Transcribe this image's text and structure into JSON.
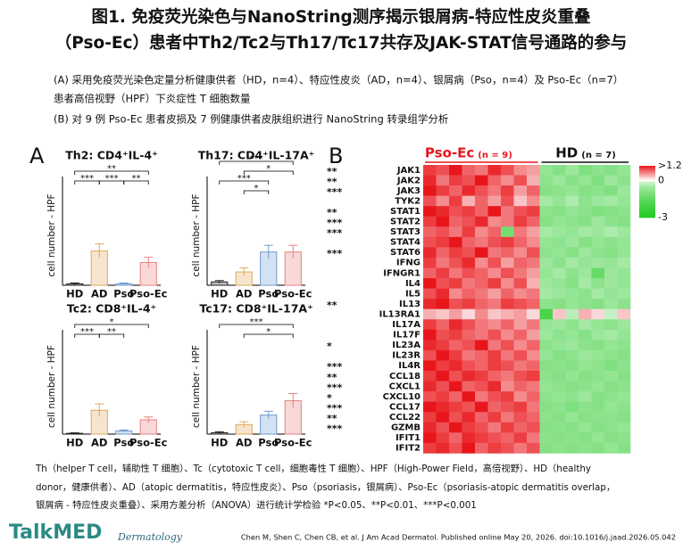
{
  "header": {
    "title_line1": "图1. 免疫荧光染色与NanoString测序揭示银屑病-特应性皮炎重叠",
    "title_line2": "（Pso-Ec）患者中Th2/Tc2与Th17/Tc17共存及JAK-STAT信号通路的参与",
    "desc_a1": "(A) 采用免疫荧光染色定量分析健康供者（HD，n=4）、特应性皮炎（AD，n=4）、银屑病（Pso，n=4）及 Pso-Ec（n=7）",
    "desc_a2": "患者高倍视野（HPF）下炎症性 T 细胞数量",
    "desc_b": "(B) 对 9 例 Pso-Ec 患者皮损及 7 例健康供者皮肤组织进行 NanoString 转录组学分析"
  },
  "panel_labels": {
    "a": "A",
    "b": "B"
  },
  "chart_data": [
    {
      "type": "bar",
      "title": "Th2: CD4⁺IL-4⁺",
      "ylabel": "cell number - HPF",
      "categories": [
        "HD",
        "AD",
        "Pso",
        "Pso-Ec"
      ],
      "values": [
        0.5,
        12,
        0.5,
        8
      ],
      "errors": [
        0.3,
        2.5,
        0.3,
        1.8
      ],
      "colors": [
        "#222222",
        "#e0a85a",
        "#6f9bd1",
        "#e8807e"
      ],
      "ylim": [
        0,
        35
      ],
      "significance": [
        "**",
        "***",
        "***",
        "**"
      ]
    },
    {
      "type": "bar",
      "title": "Th17: CD4⁺IL-17A⁺",
      "ylabel": "cell number - HPF",
      "categories": [
        "HD",
        "AD",
        "Pso",
        "Pso-Ec"
      ],
      "values": [
        0.5,
        2,
        5,
        5
      ],
      "errors": [
        0.2,
        0.6,
        1,
        1
      ],
      "colors": [
        "#222222",
        "#e0a85a",
        "#6f9bd1",
        "#e8807e"
      ],
      "ylim": [
        0,
        15
      ],
      "significance": [
        "***",
        "*",
        "***",
        "*"
      ]
    },
    {
      "type": "bar",
      "title": "Tc2: CD8⁺IL-4⁺",
      "ylabel": "cell number - HPF",
      "categories": [
        "HD",
        "AD",
        "Pso",
        "Pso-Ec"
      ],
      "values": [
        0.5,
        15,
        2,
        9
      ],
      "errors": [
        0.3,
        4,
        0.6,
        1.8
      ],
      "colors": [
        "#222222",
        "#e0a85a",
        "#6f9bd1",
        "#e8807e"
      ],
      "ylim": [
        0,
        60
      ],
      "significance": [
        "*",
        "***",
        "**"
      ]
    },
    {
      "type": "bar",
      "title": "Tc17: CD8⁺IL-17A⁺",
      "ylabel": "cell number - HPF",
      "categories": [
        "HD",
        "AD",
        "Pso",
        "Pso-Ec"
      ],
      "values": [
        0.3,
        2,
        4,
        7
      ],
      "errors": [
        0.2,
        0.6,
        0.8,
        1.5
      ],
      "colors": [
        "#222222",
        "#e0a85a",
        "#6f9bd1",
        "#e8807e"
      ],
      "ylim": [
        0,
        20
      ],
      "significance": [
        "***",
        "*"
      ]
    },
    {
      "type": "heatmap",
      "groups": [
        {
          "name": "Pso-Ec",
          "n": {
            "value": 9,
            "label": "(n = 9)"
          },
          "color": "#e8161b"
        },
        {
          "name": "HD",
          "n": {
            "value": 7,
            "label": "(n = 7)"
          },
          "color": "#111111"
        }
      ],
      "rows": [
        "JAK1",
        "JAK2",
        "JAK3",
        "TYK2",
        "STAT1",
        "STAT2",
        "STAT3",
        "STAT4",
        "STAT6",
        "IFNG",
        "IFNGR1",
        "IL4",
        "IL5",
        "IL13",
        "IL13RA1",
        "IL17A",
        "IL17F",
        "IL23A",
        "IL23R",
        "IL4R",
        "CCL18",
        "CXCL1",
        "CXCL10",
        "CCL17",
        "CCL22",
        "GZMB",
        "IFIT1",
        "IFIT2"
      ],
      "significance": [
        "**",
        "**",
        "***",
        null,
        "**",
        "***",
        "***",
        null,
        "***",
        null,
        null,
        null,
        null,
        "**",
        null,
        null,
        null,
        "*",
        null,
        "***",
        "**",
        "***",
        "*",
        "***",
        "**",
        "***",
        null,
        null
      ],
      "values": [
        [
          1.0,
          0.9,
          1.2,
          0.8,
          0.7,
          1.1,
          0.9,
          0.6,
          0.5,
          -0.7,
          -0.9,
          -0.6,
          -1.0,
          -0.8,
          -0.9,
          -0.7
        ],
        [
          1.1,
          0.7,
          1.0,
          0.9,
          1.2,
          0.8,
          0.6,
          0.9,
          0.4,
          -0.8,
          -0.6,
          -0.9,
          -0.7,
          -1.0,
          -0.6,
          -0.8
        ],
        [
          1.2,
          1.0,
          0.8,
          1.1,
          0.9,
          0.7,
          1.0,
          0.5,
          0.8,
          -0.9,
          -0.8,
          -0.7,
          -0.9,
          -0.8,
          -1.0,
          -0.6
        ],
        [
          0.9,
          0.6,
          1.0,
          0.4,
          0.8,
          0.5,
          0.9,
          0.3,
          0.6,
          -0.5,
          -0.7,
          -0.4,
          -0.8,
          -0.6,
          -0.5,
          -0.7
        ],
        [
          1.2,
          1.1,
          0.9,
          1.0,
          0.8,
          1.2,
          0.7,
          0.9,
          1.0,
          -0.8,
          -0.9,
          -0.7,
          -0.8,
          -1.0,
          -0.9,
          -0.8
        ],
        [
          1.0,
          1.2,
          0.8,
          0.9,
          1.1,
          0.6,
          0.7,
          1.0,
          0.8,
          -0.9,
          -0.7,
          -0.8,
          -0.9,
          -0.6,
          -0.8,
          -0.9
        ],
        [
          0.8,
          0.9,
          0.7,
          1.0,
          0.6,
          0.8,
          -1.2,
          0.7,
          0.5,
          -0.5,
          -0.6,
          -0.7,
          -0.5,
          -0.6,
          -0.4,
          -0.6
        ],
        [
          0.9,
          1.0,
          1.2,
          0.8,
          0.7,
          0.9,
          1.0,
          0.8,
          0.6,
          -0.7,
          -0.8,
          -0.6,
          -0.9,
          -0.7,
          -0.8,
          -0.7
        ],
        [
          1.1,
          0.8,
          1.0,
          0.9,
          1.2,
          0.7,
          0.8,
          0.6,
          0.9,
          -0.8,
          -0.7,
          -0.9,
          -0.6,
          -0.8,
          -0.9,
          -0.7
        ],
        [
          1.0,
          0.7,
          0.9,
          1.1,
          0.6,
          0.9,
          0.5,
          0.8,
          0.7,
          -0.6,
          -0.8,
          -0.5,
          -0.7,
          -0.6,
          -0.7,
          -0.5
        ],
        [
          0.8,
          1.0,
          0.7,
          0.9,
          0.8,
          0.6,
          0.9,
          0.7,
          0.5,
          -0.7,
          -0.5,
          -0.8,
          -0.6,
          -1.4,
          -0.6,
          -0.7
        ],
        [
          1.2,
          0.9,
          1.0,
          0.7,
          0.8,
          1.0,
          0.6,
          0.9,
          0.4,
          -0.6,
          -0.7,
          -0.9,
          -0.5,
          -0.8,
          -0.6,
          -0.7
        ],
        [
          0.9,
          1.1,
          0.6,
          0.8,
          0.7,
          0.5,
          0.8,
          0.6,
          0.7,
          -0.5,
          -0.6,
          -0.7,
          -0.8,
          -0.5,
          -0.7,
          -0.6
        ],
        [
          1.1,
          1.2,
          0.9,
          1.0,
          0.8,
          0.7,
          1.0,
          0.9,
          0.8,
          -0.8,
          -0.9,
          -0.7,
          -0.8,
          -0.9,
          -0.6,
          -0.8
        ],
        [
          0.4,
          0.3,
          0.5,
          0.2,
          0.6,
          0.3,
          0.4,
          0.5,
          0.2,
          -2.0,
          0.3,
          -0.3,
          0.4,
          0.2,
          -0.2,
          0.3
        ],
        [
          1.0,
          0.8,
          1.1,
          0.9,
          0.7,
          0.6,
          0.8,
          0.5,
          0.7,
          -0.7,
          -0.6,
          -0.8,
          -0.5,
          -0.7,
          -0.8,
          -0.6
        ],
        [
          1.2,
          0.9,
          1.0,
          0.8,
          0.7,
          0.9,
          0.6,
          0.8,
          0.5,
          -0.6,
          -0.8,
          -0.7,
          -0.9,
          -0.6,
          -0.5,
          -0.7
        ],
        [
          1.1,
          1.0,
          0.8,
          0.9,
          1.2,
          0.7,
          0.9,
          0.6,
          0.8,
          -0.8,
          -0.7,
          -0.6,
          -0.8,
          -0.9,
          -0.7,
          -0.8
        ],
        [
          0.9,
          1.2,
          1.0,
          0.7,
          0.8,
          1.0,
          0.7,
          0.9,
          0.6,
          -0.7,
          -0.9,
          -0.8,
          -0.6,
          -0.7,
          -0.8,
          -0.9
        ],
        [
          1.2,
          1.0,
          1.1,
          0.9,
          0.8,
          1.0,
          0.9,
          0.7,
          0.8,
          -0.9,
          -0.8,
          -0.9,
          -0.7,
          -0.8,
          -1.0,
          -0.8
        ],
        [
          1.0,
          1.2,
          0.9,
          1.1,
          1.0,
          0.8,
          0.7,
          0.9,
          1.0,
          -0.8,
          -0.9,
          -0.7,
          -0.9,
          -0.8,
          -0.7,
          -0.9
        ],
        [
          1.1,
          0.9,
          1.2,
          0.8,
          0.9,
          1.1,
          0.6,
          0.8,
          0.7,
          -0.7,
          -0.8,
          -0.9,
          -0.8,
          -0.7,
          -0.9,
          -0.8
        ],
        [
          0.9,
          1.0,
          0.8,
          1.2,
          0.7,
          0.9,
          1.0,
          0.6,
          0.8,
          -0.8,
          -0.7,
          -0.8,
          -0.6,
          -0.9,
          -0.8,
          -0.7
        ],
        [
          1.2,
          1.1,
          1.0,
          0.9,
          1.2,
          0.8,
          0.9,
          1.0,
          0.7,
          -0.9,
          -0.8,
          -1.0,
          -0.8,
          -0.9,
          -0.7,
          -0.8
        ],
        [
          1.0,
          1.2,
          0.9,
          1.1,
          0.8,
          1.0,
          0.7,
          0.9,
          0.8,
          -0.8,
          -0.9,
          -0.7,
          -0.9,
          -0.8,
          -0.8,
          -0.9
        ],
        [
          1.1,
          0.9,
          1.2,
          1.0,
          0.9,
          0.7,
          1.0,
          0.8,
          0.9,
          -0.9,
          -0.8,
          -0.9,
          -0.7,
          -0.9,
          -0.8,
          -0.7
        ],
        [
          1.2,
          1.0,
          0.8,
          1.1,
          1.0,
          0.9,
          0.8,
          1.0,
          0.7,
          -0.8,
          -0.9,
          -0.8,
          -0.9,
          -0.7,
          -0.9,
          -0.8
        ],
        [
          1.0,
          1.1,
          0.9,
          1.2,
          0.8,
          1.0,
          0.9,
          0.7,
          0.9,
          -0.9,
          -0.8,
          -0.9,
          -0.8,
          -0.9,
          -0.7,
          -0.9
        ]
      ],
      "colors": {
        "high": "#e8161b",
        "mid": "#ffffff",
        "low": "#22c922"
      },
      "zlim": [
        -3,
        1.2
      ],
      "colorbar_ticks": [
        {
          "value": 1.2,
          "label": ">1.2"
        },
        0,
        -3
      ]
    }
  ],
  "footer": {
    "note1": "Th（helper T cell，辅助性 T 细胞）、Tc（cytotoxic T cell，细胞毒性 T 细胞）、HPF（High-Power Field，高倍视野）、HD（healthy",
    "note2": "donor，健康供者）、AD（atopic dermatitis，特应性皮炎）、Pso（psoriasis，银屑病）、Pso-Ec（psoriasis-atopic dermatitis overlap，",
    "note3": "银屑病 - 特应性皮炎重叠）、采用方差分析（ANOVA）进行统计学检验 *P<0.05、**P<0.01、***P<0.001",
    "brand": "TalkMED",
    "section": "Dermatology",
    "citation": "Chen M, Shen C, Chen CB, et al. J Am Acad Dermatol. Published online May 20, 2026. doi:10.1016/j.jaad.2026.05.042"
  }
}
